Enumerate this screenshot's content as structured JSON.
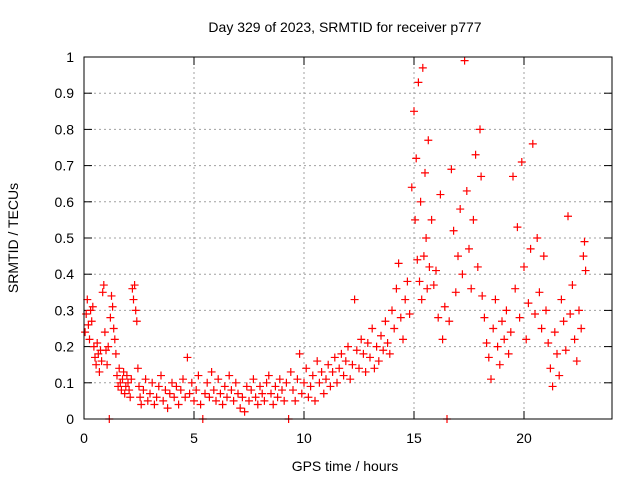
{
  "chart_data": {
    "type": "scatter",
    "title": "Day 329 of 2023, SRMTID for receiver p777",
    "xlabel": "GPS time / hours",
    "ylabel": "SRMTID / TECUs",
    "xlim": [
      0,
      24
    ],
    "ylim": [
      0,
      1
    ],
    "xticks": [
      0,
      5,
      10,
      15,
      20
    ],
    "xtick_labels": [
      "0",
      "5",
      "10",
      "15",
      "20"
    ],
    "yticks": [
      0,
      0.1,
      0.2,
      0.3,
      0.4,
      0.5,
      0.6,
      0.7,
      0.8,
      0.9,
      1
    ],
    "ytick_labels": [
      "0",
      "0.1",
      "0.2",
      "0.3",
      "0.4",
      "0.5",
      "0.6",
      "0.7",
      "0.8",
      "0.9",
      "1"
    ],
    "grid": true,
    "marker": "+",
    "color": "#ff0000",
    "series": [
      {
        "name": "SRMTID",
        "points": [
          [
            0.05,
            0.24
          ],
          [
            0.1,
            0.29
          ],
          [
            0.15,
            0.33
          ],
          [
            0.2,
            0.26
          ],
          [
            0.25,
            0.22
          ],
          [
            0.3,
            0.3
          ],
          [
            0.35,
            0.27
          ],
          [
            0.4,
            0.31
          ],
          [
            0.45,
            0.2
          ],
          [
            0.5,
            0.17
          ],
          [
            0.55,
            0.15
          ],
          [
            0.6,
            0.21
          ],
          [
            0.65,
            0.18
          ],
          [
            0.7,
            0.13
          ],
          [
            0.75,
            0.19
          ],
          [
            0.8,
            0.16
          ],
          [
            0.85,
            0.35
          ],
          [
            0.9,
            0.37
          ],
          [
            0.95,
            0.24
          ],
          [
            1.0,
            0.19
          ],
          [
            1.05,
            0.15
          ],
          [
            1.1,
            0.2
          ],
          [
            1.15,
            0.0
          ],
          [
            1.2,
            0.28
          ],
          [
            1.25,
            0.34
          ],
          [
            1.3,
            0.31
          ],
          [
            1.35,
            0.25
          ],
          [
            1.4,
            0.22
          ],
          [
            1.45,
            0.18
          ],
          [
            1.5,
            0.12
          ],
          [
            1.55,
            0.09
          ],
          [
            1.6,
            0.14
          ],
          [
            1.65,
            0.1
          ],
          [
            1.7,
            0.08
          ],
          [
            1.75,
            0.11
          ],
          [
            1.8,
            0.13
          ],
          [
            1.85,
            0.07
          ],
          [
            1.9,
            0.09
          ],
          [
            1.95,
            0.12
          ],
          [
            2.0,
            0.1
          ],
          [
            2.05,
            0.08
          ],
          [
            2.1,
            0.06
          ],
          [
            2.15,
            0.11
          ],
          [
            2.2,
            0.36
          ],
          [
            2.25,
            0.33
          ],
          [
            2.3,
            0.37
          ],
          [
            2.35,
            0.3
          ],
          [
            2.4,
            0.27
          ],
          [
            2.45,
            0.14
          ],
          [
            2.5,
            0.09
          ],
          [
            2.55,
            0.06
          ],
          [
            2.6,
            0.04
          ],
          [
            2.7,
            0.08
          ],
          [
            2.8,
            0.11
          ],
          [
            2.9,
            0.05
          ],
          [
            3.0,
            0.07
          ],
          [
            3.1,
            0.1
          ],
          [
            3.2,
            0.04
          ],
          [
            3.3,
            0.06
          ],
          [
            3.4,
            0.09
          ],
          [
            3.5,
            0.12
          ],
          [
            3.6,
            0.05
          ],
          [
            3.7,
            0.08
          ],
          [
            3.8,
            0.03
          ],
          [
            3.9,
            0.07
          ],
          [
            4.0,
            0.1
          ],
          [
            4.1,
            0.06
          ],
          [
            4.2,
            0.09
          ],
          [
            4.3,
            0.04
          ],
          [
            4.4,
            0.08
          ],
          [
            4.5,
            0.11
          ],
          [
            4.6,
            0.06
          ],
          [
            4.7,
            0.17
          ],
          [
            4.8,
            0.07
          ],
          [
            4.9,
            0.1
          ],
          [
            5.0,
            0.05
          ],
          [
            5.1,
            0.08
          ],
          [
            5.2,
            0.12
          ],
          [
            5.3,
            0.04
          ],
          [
            5.4,
            0.0
          ],
          [
            5.5,
            0.07
          ],
          [
            5.6,
            0.1
          ],
          [
            5.7,
            0.06
          ],
          [
            5.8,
            0.13
          ],
          [
            5.9,
            0.08
          ],
          [
            6.0,
            0.05
          ],
          [
            6.1,
            0.11
          ],
          [
            6.2,
            0.07
          ],
          [
            6.3,
            0.04
          ],
          [
            6.4,
            0.09
          ],
          [
            6.5,
            0.06
          ],
          [
            6.6,
            0.12
          ],
          [
            6.7,
            0.08
          ],
          [
            6.8,
            0.05
          ],
          [
            6.9,
            0.1
          ],
          [
            7.0,
            0.07
          ],
          [
            7.1,
            0.03
          ],
          [
            7.2,
            0.06
          ],
          [
            7.3,
            0.02
          ],
          [
            7.4,
            0.09
          ],
          [
            7.5,
            0.05
          ],
          [
            7.6,
            0.08
          ],
          [
            7.7,
            0.11
          ],
          [
            7.8,
            0.06
          ],
          [
            7.9,
            0.04
          ],
          [
            8.0,
            0.09
          ],
          [
            8.1,
            0.07
          ],
          [
            8.2,
            0.05
          ],
          [
            8.3,
            0.1
          ],
          [
            8.4,
            0.12
          ],
          [
            8.5,
            0.07
          ],
          [
            8.6,
            0.04
          ],
          [
            8.7,
            0.09
          ],
          [
            8.8,
            0.06
          ],
          [
            8.9,
            0.11
          ],
          [
            9.0,
            0.08
          ],
          [
            9.1,
            0.05
          ],
          [
            9.2,
            0.1
          ],
          [
            9.3,
            0.0
          ],
          [
            9.4,
            0.13
          ],
          [
            9.5,
            0.08
          ],
          [
            9.6,
            0.05
          ],
          [
            9.7,
            0.11
          ],
          [
            9.8,
            0.18
          ],
          [
            9.9,
            0.07
          ],
          [
            10.0,
            0.1
          ],
          [
            10.1,
            0.14
          ],
          [
            10.2,
            0.06
          ],
          [
            10.3,
            0.09
          ],
          [
            10.4,
            0.12
          ],
          [
            10.5,
            0.05
          ],
          [
            10.6,
            0.16
          ],
          [
            10.7,
            0.1
          ],
          [
            10.8,
            0.13
          ],
          [
            10.9,
            0.07
          ],
          [
            11.0,
            0.11
          ],
          [
            11.1,
            0.15
          ],
          [
            11.2,
            0.09
          ],
          [
            11.3,
            0.13
          ],
          [
            11.4,
            0.17
          ],
          [
            11.5,
            0.1
          ],
          [
            11.6,
            0.14
          ],
          [
            11.7,
            0.18
          ],
          [
            11.8,
            0.12
          ],
          [
            11.9,
            0.16
          ],
          [
            12.0,
            0.2
          ],
          [
            12.1,
            0.11
          ],
          [
            12.2,
            0.15
          ],
          [
            12.3,
            0.33
          ],
          [
            12.4,
            0.19
          ],
          [
            12.5,
            0.14
          ],
          [
            12.6,
            0.22
          ],
          [
            12.7,
            0.18
          ],
          [
            12.8,
            0.13
          ],
          [
            12.9,
            0.21
          ],
          [
            13.0,
            0.17
          ],
          [
            13.1,
            0.25
          ],
          [
            13.2,
            0.14
          ],
          [
            13.3,
            0.2
          ],
          [
            13.4,
            0.16
          ],
          [
            13.5,
            0.23
          ],
          [
            13.6,
            0.19
          ],
          [
            13.7,
            0.27
          ],
          [
            13.8,
            0.21
          ],
          [
            13.9,
            0.18
          ],
          [
            14.0,
            0.3
          ],
          [
            14.1,
            0.25
          ],
          [
            14.2,
            0.36
          ],
          [
            14.3,
            0.43
          ],
          [
            14.4,
            0.28
          ],
          [
            14.5,
            0.22
          ],
          [
            14.6,
            0.33
          ],
          [
            14.7,
            0.38
          ],
          [
            14.8,
            0.29
          ],
          [
            14.9,
            0.64
          ],
          [
            15.0,
            0.85
          ],
          [
            15.05,
            0.55
          ],
          [
            15.1,
            0.72
          ],
          [
            15.15,
            0.44
          ],
          [
            15.2,
            0.93
          ],
          [
            15.25,
            0.38
          ],
          [
            15.3,
            0.6
          ],
          [
            15.35,
            0.33
          ],
          [
            15.4,
            0.97
          ],
          [
            15.45,
            0.45
          ],
          [
            15.5,
            0.68
          ],
          [
            15.55,
            0.5
          ],
          [
            15.6,
            0.36
          ],
          [
            15.65,
            0.77
          ],
          [
            15.7,
            0.42
          ],
          [
            15.8,
            0.55
          ],
          [
            15.9,
            0.37
          ],
          [
            16.0,
            0.41
          ],
          [
            16.1,
            0.28
          ],
          [
            16.2,
            0.62
          ],
          [
            16.3,
            0.22
          ],
          [
            16.4,
            0.31
          ],
          [
            16.5,
            0.0
          ],
          [
            16.6,
            0.27
          ],
          [
            16.7,
            0.69
          ],
          [
            16.8,
            0.52
          ],
          [
            16.9,
            0.35
          ],
          [
            17.0,
            0.45
          ],
          [
            17.1,
            0.58
          ],
          [
            17.2,
            0.4
          ],
          [
            17.3,
            0.99
          ],
          [
            17.4,
            0.63
          ],
          [
            17.5,
            0.47
          ],
          [
            17.6,
            0.36
          ],
          [
            17.7,
            0.55
          ],
          [
            17.8,
            0.73
          ],
          [
            17.9,
            0.42
          ],
          [
            18.0,
            0.8
          ],
          [
            18.05,
            0.67
          ],
          [
            18.1,
            0.34
          ],
          [
            18.2,
            0.28
          ],
          [
            18.3,
            0.21
          ],
          [
            18.4,
            0.17
          ],
          [
            18.5,
            0.11
          ],
          [
            18.6,
            0.25
          ],
          [
            18.7,
            0.33
          ],
          [
            18.8,
            0.2
          ],
          [
            18.9,
            0.15
          ],
          [
            19.0,
            0.27
          ],
          [
            19.1,
            0.22
          ],
          [
            19.2,
            0.3
          ],
          [
            19.3,
            0.18
          ],
          [
            19.4,
            0.24
          ],
          [
            19.5,
            0.67
          ],
          [
            19.6,
            0.36
          ],
          [
            19.7,
            0.53
          ],
          [
            19.8,
            0.28
          ],
          [
            19.9,
            0.71
          ],
          [
            20.0,
            0.42
          ],
          [
            20.1,
            0.22
          ],
          [
            20.2,
            0.32
          ],
          [
            20.3,
            0.47
          ],
          [
            20.4,
            0.76
          ],
          [
            20.5,
            0.29
          ],
          [
            20.6,
            0.5
          ],
          [
            20.7,
            0.35
          ],
          [
            20.8,
            0.25
          ],
          [
            20.9,
            0.45
          ],
          [
            21.0,
            0.3
          ],
          [
            21.1,
            0.21
          ],
          [
            21.2,
            0.14
          ],
          [
            21.3,
            0.09
          ],
          [
            21.4,
            0.24
          ],
          [
            21.5,
            0.18
          ],
          [
            21.6,
            0.12
          ],
          [
            21.7,
            0.33
          ],
          [
            21.8,
            0.27
          ],
          [
            21.9,
            0.19
          ],
          [
            22.0,
            0.56
          ],
          [
            22.1,
            0.29
          ],
          [
            22.2,
            0.37
          ],
          [
            22.3,
            0.22
          ],
          [
            22.4,
            0.16
          ],
          [
            22.5,
            0.3
          ],
          [
            22.6,
            0.25
          ],
          [
            22.7,
            0.45
          ],
          [
            22.75,
            0.49
          ],
          [
            22.8,
            0.41
          ]
        ]
      }
    ]
  }
}
